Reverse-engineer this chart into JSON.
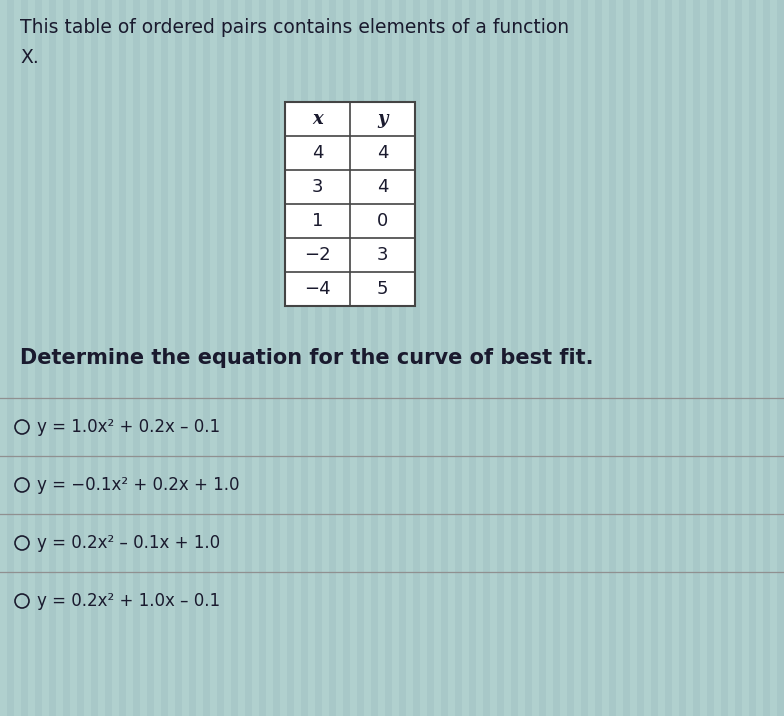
{
  "title_line1": "This table of ordered pairs contains elements of a function",
  "title_line2": "X.",
  "table_headers": [
    "x",
    "y"
  ],
  "table_data": [
    [
      "4",
      "4"
    ],
    [
      "3",
      "4"
    ],
    [
      "1",
      "0"
    ],
    [
      "−2",
      "3"
    ],
    [
      "−4",
      "5"
    ]
  ],
  "question": "Determine the equation for the curve of best fit.",
  "options": [
    "y = 1.0x² + 0.2x – 0.1",
    "y = −0.1x² + 0.2x + 1.0",
    "y = 0.2x² – 0.1x + 1.0",
    "y = 0.2x² + 1.0x – 0.1"
  ],
  "bg_color": "#a8c8c8",
  "bg_stripe_color": "#b8d8d4",
  "table_bg": "#ffffff",
  "text_color": "#1a1a2e",
  "divider_color": "#909090",
  "title_fontsize": 13.5,
  "question_fontsize": 15,
  "option_fontsize": 12,
  "table_header_fontsize": 13,
  "table_data_fontsize": 13,
  "fig_width": 7.84,
  "fig_height": 7.16,
  "dpi": 100
}
